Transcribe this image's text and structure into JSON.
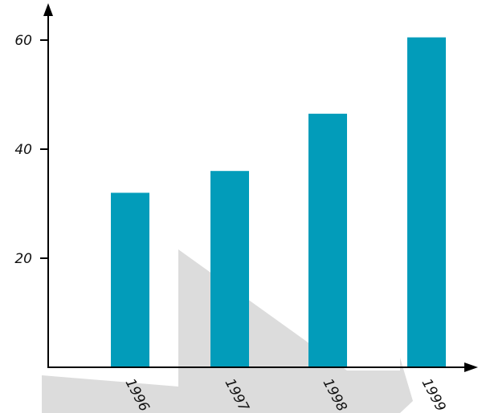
{
  "chart_data": {
    "type": "bar",
    "categories": [
      "1996",
      "1997",
      "1998",
      "1999"
    ],
    "values": [
      32,
      36,
      46.5,
      60.5
    ],
    "yticks": [
      20,
      40,
      60
    ],
    "ylim": [
      0,
      66
    ],
    "grid": false,
    "colors": {
      "bar": "#029cba",
      "axis": "#000000",
      "background_arrow": "#dcdcdc"
    }
  }
}
